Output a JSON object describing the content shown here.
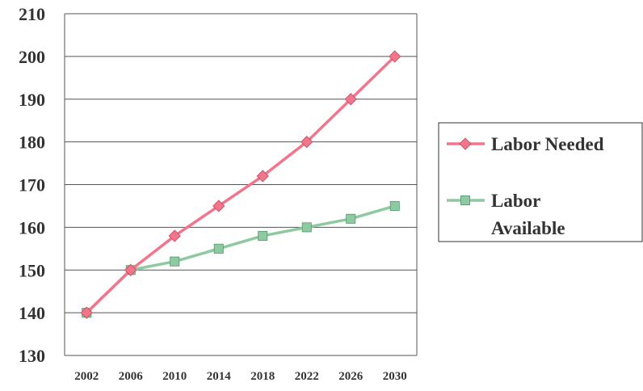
{
  "chart_data": {
    "type": "line",
    "categories": [
      "2002",
      "2006",
      "2010",
      "2014",
      "2018",
      "2022",
      "2026",
      "2030"
    ],
    "series": [
      {
        "name": "Labor Needed",
        "values": [
          140,
          150,
          158,
          165,
          172,
          180,
          190,
          200
        ],
        "color": "#f2758c",
        "marker": "diamond"
      },
      {
        "name": "Labor Available",
        "values": [
          140,
          150,
          152,
          155,
          158,
          160,
          162,
          165
        ],
        "color": "#8fc9a2",
        "marker": "square"
      }
    ],
    "title": "",
    "xlabel": "",
    "ylabel": "",
    "ylim": [
      130,
      210
    ],
    "yticks": [
      "130",
      "140",
      "150",
      "160",
      "170",
      "180",
      "190",
      "200",
      "210"
    ],
    "grid": true,
    "legend": {
      "position": "right",
      "items": [
        {
          "lines": [
            "Labor Needed"
          ]
        },
        {
          "lines": [
            "Labor",
            "Available"
          ]
        }
      ]
    }
  }
}
